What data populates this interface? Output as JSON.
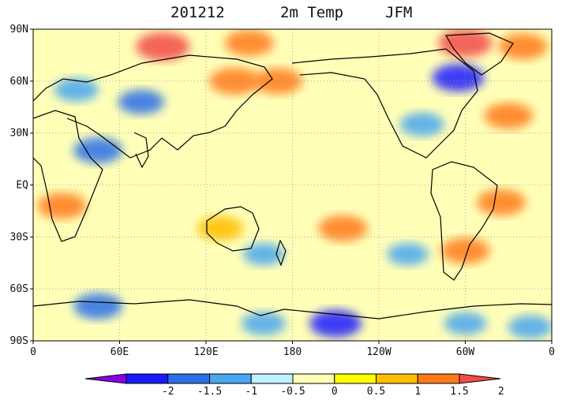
{
  "title": {
    "date": "201212",
    "variable": "2m Temp",
    "season": "JFM"
  },
  "lat_labels": [
    "90N",
    "60N",
    "30N",
    "EQ",
    "30S",
    "60S",
    "90S"
  ],
  "lon_labels": [
    "0",
    "60E",
    "120E",
    "180",
    "120W",
    "60W",
    "0"
  ],
  "colorbar": {
    "labels": [
      "-2",
      "-1.5",
      "-1",
      "-0.5",
      "0",
      "0.5",
      "1",
      "1.5",
      "2"
    ],
    "colors": [
      "#8a00e6",
      "#1a1aff",
      "#2a6fe8",
      "#4aa6f0",
      "#bff0ff",
      "#ffffb8",
      "#ffff00",
      "#ffbe00",
      "#ff7a1a",
      "#f24a4a"
    ]
  },
  "map": {
    "background_color": "#ffffb8",
    "anomalies": [
      {
        "lon": 90,
        "lat": 80,
        "value": 2
      },
      {
        "lon": 150,
        "lat": 82,
        "value": 1.5
      },
      {
        "lon": 300,
        "lat": 82,
        "value": 2
      },
      {
        "lon": 340,
        "lat": 80,
        "value": 1.5
      },
      {
        "lon": 140,
        "lat": 60,
        "value": 1.7
      },
      {
        "lon": 170,
        "lat": 60,
        "value": 1.5
      },
      {
        "lon": 330,
        "lat": 40,
        "value": 1.5
      },
      {
        "lon": 295,
        "lat": 62,
        "value": -1.8
      },
      {
        "lon": 30,
        "lat": 55,
        "value": -1
      },
      {
        "lon": 75,
        "lat": 48,
        "value": -1.2
      },
      {
        "lon": 45,
        "lat": 20,
        "value": -1.5
      },
      {
        "lon": 270,
        "lat": 35,
        "value": -1
      },
      {
        "lon": 20,
        "lat": -12,
        "value": 1.5
      },
      {
        "lon": 325,
        "lat": -10,
        "value": 1.5
      },
      {
        "lon": 130,
        "lat": -25,
        "value": 1.2
      },
      {
        "lon": 215,
        "lat": -25,
        "value": 1.5
      },
      {
        "lon": 300,
        "lat": -38,
        "value": 1.5
      },
      {
        "lon": 160,
        "lat": -40,
        "value": -0.7
      },
      {
        "lon": 260,
        "lat": -40,
        "value": -0.7
      },
      {
        "lon": 45,
        "lat": -70,
        "value": -1.5
      },
      {
        "lon": 210,
        "lat": -80,
        "value": -1.8
      },
      {
        "lon": 160,
        "lat": -80,
        "value": -1
      },
      {
        "lon": 300,
        "lat": -80,
        "value": -0.8
      },
      {
        "lon": 345,
        "lat": -82,
        "value": -1
      }
    ]
  }
}
